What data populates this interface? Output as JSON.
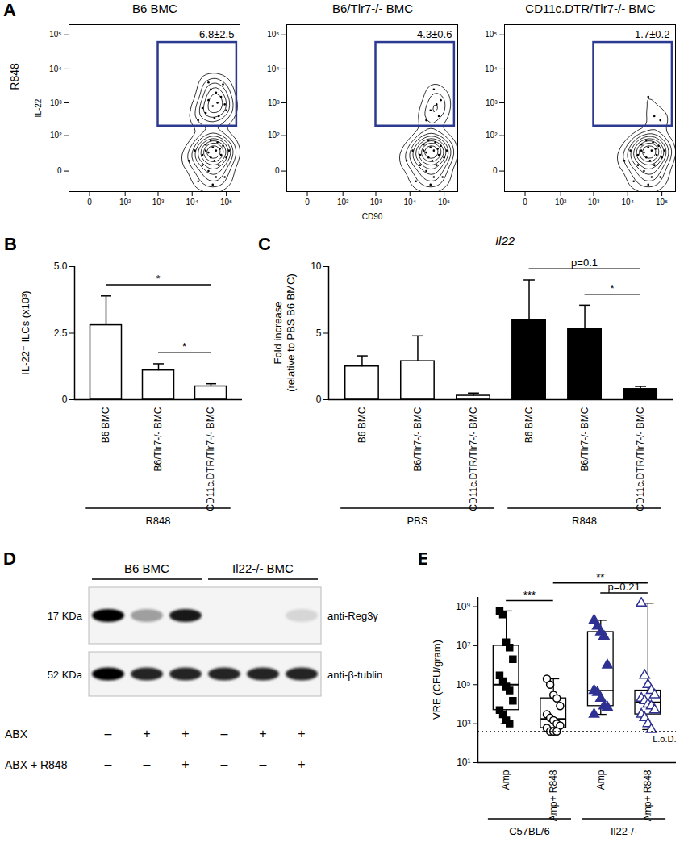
{
  "chart_data": [
    {
      "panel": "A",
      "type": "contour",
      "title": "B6 BMC",
      "annotation": "R848",
      "y_label": "IL-22",
      "log": true,
      "xlim": [
        -30,
        250000
      ],
      "ylim": [
        -30,
        200000
      ],
      "xticks": [
        0,
        {
          "value": 100,
          "label": "10²"
        },
        {
          "value": 1000,
          "label": "10³"
        },
        {
          "value": 10000,
          "label": "10⁴"
        },
        {
          "value": 100000,
          "label": "10⁵"
        }
      ],
      "yticks": [
        0,
        {
          "value": 100,
          "label": "10²"
        },
        {
          "value": 1000,
          "label": "10³"
        },
        {
          "value": 10000,
          "label": "10⁴"
        },
        {
          "value": 100000,
          "label": "10⁵"
        }
      ],
      "x": [
        8000,
        12000,
        15000,
        20000,
        25000,
        30000,
        30000,
        35000,
        40000,
        40000,
        45000,
        50000,
        55000,
        60000,
        70000,
        80000,
        90000,
        100000,
        120000,
        20000,
        50000,
        35000,
        65000,
        25000,
        15000,
        25000,
        30000,
        40000,
        50000,
        60000,
        70000,
        80000,
        20000,
        35000,
        45000,
        90000,
        55000,
        100000,
        30000
      ],
      "y": [
        10,
        30,
        -10,
        20,
        50,
        0,
        25,
        15,
        40,
        -15,
        10,
        30,
        60,
        5,
        20,
        45,
        -5,
        15,
        30,
        5,
        -5,
        70,
        35,
        30,
        300,
        500,
        1200,
        800,
        2000,
        400,
        1500,
        3500,
        700,
        2500,
        350,
        900,
        1000,
        600,
        4000
      ],
      "gate": {
        "x": [
          1000,
          200000
        ],
        "y": [
          200,
          60000
        ],
        "label": "6.8±2.5",
        "color": "#2b3990"
      }
    },
    {
      "type": "contour",
      "title": "B6/Tlr7-/- BMC",
      "x_label": "CD90",
      "log": true,
      "xlim": [
        -30,
        250000
      ],
      "ylim": [
        -30,
        200000
      ],
      "xticks": [
        0,
        {
          "value": 100,
          "label": "10²"
        },
        {
          "value": 1000,
          "label": "10³"
        },
        {
          "value": 10000,
          "label": "10⁴"
        },
        {
          "value": 100000,
          "label": "10⁵"
        }
      ],
      "yticks": [
        0,
        {
          "value": 100,
          "label": "10²"
        },
        {
          "value": 1000,
          "label": "10³"
        },
        {
          "value": 10000,
          "label": "10⁴"
        },
        {
          "value": 100000,
          "label": "10⁵"
        }
      ],
      "x": [
        8000,
        12000,
        15000,
        20000,
        25000,
        30000,
        30000,
        35000,
        40000,
        40000,
        45000,
        50000,
        55000,
        60000,
        70000,
        80000,
        90000,
        100000,
        120000,
        20000,
        50000,
        35000,
        65000,
        25000,
        30000,
        40000,
        50000,
        60000,
        70000,
        80000
      ],
      "y": [
        10,
        30,
        -10,
        20,
        50,
        0,
        25,
        15,
        40,
        -15,
        10,
        30,
        60,
        5,
        20,
        45,
        -5,
        15,
        30,
        5,
        -5,
        70,
        35,
        30,
        300,
        600,
        2500,
        900,
        400,
        1200
      ],
      "gate": {
        "x": [
          1000,
          200000
        ],
        "y": [
          200,
          60000
        ],
        "label": "4.3±0.6",
        "color": "#2b3990"
      }
    },
    {
      "type": "contour",
      "title": "CD11c.DTR/Tlr7-/- BMC",
      "log": true,
      "xlim": [
        -30,
        250000
      ],
      "ylim": [
        -30,
        200000
      ],
      "xticks": [
        0,
        {
          "value": 100,
          "label": "10²"
        },
        {
          "value": 1000,
          "label": "10³"
        },
        {
          "value": 10000,
          "label": "10⁴"
        },
        {
          "value": 100000,
          "label": "10⁵"
        }
      ],
      "yticks": [
        0,
        {
          "value": 100,
          "label": "10²"
        },
        {
          "value": 1000,
          "label": "10³"
        },
        {
          "value": 10000,
          "label": "10⁴"
        },
        {
          "value": 100000,
          "label": "10⁵"
        }
      ],
      "x": [
        8000,
        12000,
        15000,
        20000,
        25000,
        30000,
        30000,
        35000,
        40000,
        40000,
        45000,
        50000,
        55000,
        60000,
        70000,
        80000,
        90000,
        100000,
        120000,
        20000,
        50000,
        35000,
        65000,
        25000,
        40000,
        60000,
        90000
      ],
      "y": [
        10,
        30,
        -10,
        20,
        50,
        0,
        25,
        15,
        40,
        -15,
        10,
        30,
        60,
        5,
        20,
        45,
        -5,
        15,
        30,
        5,
        -5,
        70,
        35,
        30,
        1500,
        400,
        300
      ],
      "gate": {
        "x": [
          1000,
          200000
        ],
        "y": [
          200,
          60000
        ],
        "label": "1.7±0.2",
        "color": "#2b3990"
      }
    },
    {
      "panel": "B",
      "type": "bar",
      "y_label": "IL-22⁺ ILCs (x10³)",
      "categories": [
        "B6 BMC",
        "B6/Tlr7-/- BMC",
        "CD11c.DTR/Tlr7-/- BMC"
      ],
      "groups": [
        "R848",
        "R848",
        "R848"
      ],
      "values": [
        2.8,
        1.1,
        0.5
      ],
      "errors": [
        1.1,
        0.25,
        0.1
      ],
      "color": "#ffffff",
      "ylim": [
        0,
        5
      ],
      "yticks": [
        0,
        2.5,
        {
          "value": 5,
          "label": "5.0"
        }
      ],
      "comparisons": [
        {
          "from": 0,
          "to": 2,
          "label": "*"
        },
        {
          "from": 1,
          "to": 2,
          "label": "*"
        }
      ]
    },
    {
      "panel": "C",
      "type": "bar",
      "title": "Il22",
      "y_label": "Fold increase\n(relative to PBS B6 BMC)",
      "categories": [
        "B6 BMC",
        "B6/Tlr7-/- BMC",
        "CD11c.DTR/Tlr7-/- BMC",
        "B6 BMC",
        "B6/Tlr7-/- BMC",
        "CD11c.DTR/Tlr7-/- BMC"
      ],
      "groups": [
        "PBS",
        "PBS",
        "PBS",
        "R848",
        "R848",
        "R848"
      ],
      "values": [
        2.5,
        2.9,
        0.3,
        6.0,
        5.3,
        0.8
      ],
      "errors": [
        0.8,
        1.9,
        0.2,
        3.0,
        1.8,
        0.2
      ],
      "colors": [
        "#ffffff",
        "#ffffff",
        "#ffffff",
        "#000000",
        "#000000",
        "#000000"
      ],
      "ylim": [
        0,
        10
      ],
      "yticks": [
        0,
        5,
        10
      ],
      "comparisons": [
        {
          "from": 3,
          "to": 5,
          "label": "p=0.1"
        },
        {
          "from": 4,
          "to": 5,
          "label": "*"
        }
      ]
    },
    {
      "panel": "D",
      "type": "blot",
      "lane_groups": [
        {
          "label": "B6 BMC",
          "lanes": 3
        },
        {
          "label": "Il22-/- BMC",
          "lanes": 3
        }
      ],
      "rows": [
        {
          "size": "17 KDa",
          "antibody": "anti-Reg3γ",
          "intensity": [
            1,
            0.35,
            0.9,
            0,
            0,
            0.12
          ]
        },
        {
          "size": "52 KDa",
          "antibody": "anti-β-tublin",
          "intensity": [
            1,
            0.85,
            0.85,
            0.85,
            0.85,
            0.85
          ]
        }
      ],
      "conditions": [
        {
          "label": "ABX",
          "marks": [
            "–",
            "+",
            "+",
            "–",
            "+",
            "+"
          ]
        },
        {
          "label": "ABX + R848",
          "marks": [
            "–",
            "–",
            "+",
            "–",
            "–",
            "+"
          ]
        }
      ]
    },
    {
      "panel": "E",
      "type": "box",
      "y_label": "VRE (CFU/gram)",
      "log": "y",
      "ylim": [
        10,
        3000000000
      ],
      "yticks": [
        {
          "value": 10,
          "label": "10¹"
        },
        {
          "value": 1000,
          "label": "10³"
        },
        {
          "value": 100000,
          "label": "10⁵"
        },
        {
          "value": 10000000,
          "label": "10⁷"
        },
        {
          "value": 1000000000,
          "label": "10⁹"
        }
      ],
      "groups": [
        "C57BL/6",
        "C57BL/6",
        "Il22-/-",
        "Il22-/-"
      ],
      "series": [
        {
          "name": "Amp",
          "color": "#000000",
          "marker": "square",
          "values": [
            600000000,
            400000000,
            15000000,
            8000000,
            2000000,
            300000,
            150000,
            80000,
            50000,
            15000,
            5000,
            3000,
            1500,
            1000
          ],
          "box": {
            "min": 1000,
            "q1": 5000,
            "median": 100000,
            "q3": 10000000,
            "max": 600000000
          }
        },
        {
          "name": "Amp+ R848",
          "color": "#000000",
          "marker": "circle-open",
          "values": [
            200000,
            100000,
            30000,
            20000,
            8000,
            3000,
            2000,
            1500,
            1000,
            800,
            600,
            400,
            400,
            400
          ],
          "box": {
            "min": 400,
            "q1": 600,
            "median": 1750,
            "q3": 20000,
            "max": 200000
          }
        },
        {
          "name": "Amp",
          "color": "#2e3192",
          "marker": "triangle",
          "values": [
            200000000,
            100000000,
            50000000,
            30000000,
            1000000,
            50000,
            40000,
            20000,
            8000,
            7000,
            3000
          ],
          "box": {
            "min": 3000,
            "q1": 8000,
            "median": 50000,
            "q3": 50000000,
            "max": 200000000
          }
        },
        {
          "name": "Amp+ R848",
          "color": "#2e3192",
          "marker": "triangle-open",
          "values": [
            1500000000,
            300000,
            100000,
            50000,
            30000,
            20000,
            15000,
            10000,
            8000,
            5000,
            3000,
            2000,
            1000,
            500
          ],
          "box": {
            "min": 500,
            "q1": 3000,
            "median": 12500,
            "q3": 50000,
            "max": 1500000000
          }
        }
      ],
      "lod": {
        "value": 400,
        "label": "L.o.D."
      },
      "comparisons": [
        {
          "from": 2,
          "to": 3,
          "label": "p=0.21"
        },
        {
          "from": 0,
          "to": 1,
          "label": "***"
        },
        {
          "from": 1,
          "to": 3,
          "label": "**"
        }
      ]
    }
  ]
}
